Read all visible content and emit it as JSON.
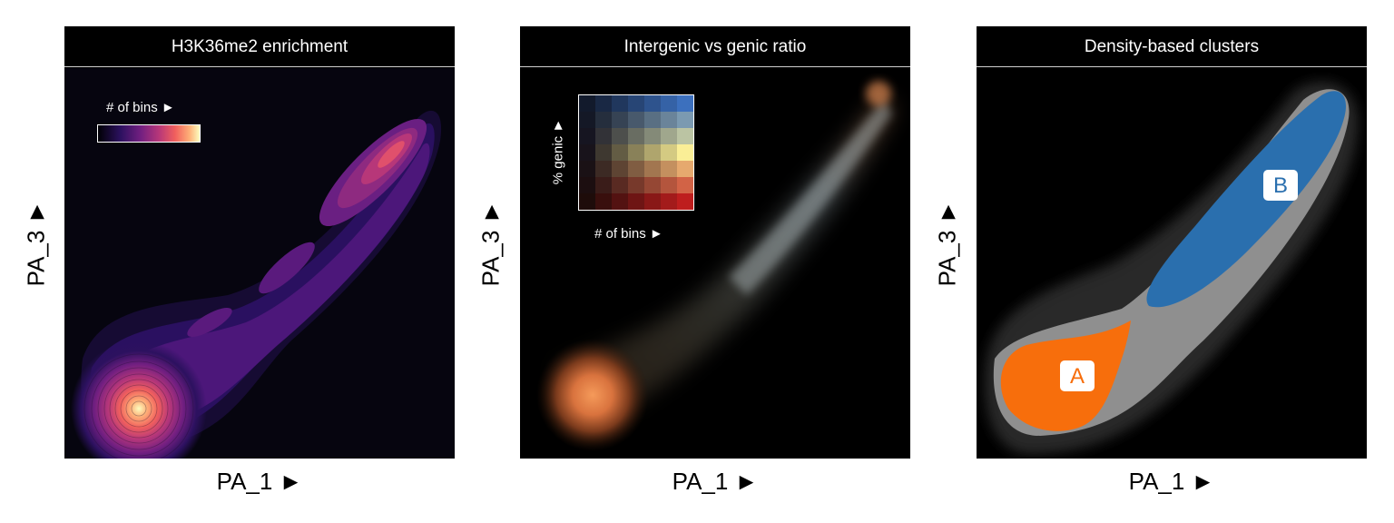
{
  "panels": [
    {
      "title": "H3K36me2 enrichment",
      "xlabel": "PA_1 ►",
      "ylabel": "PA_3 ►"
    },
    {
      "title": "Intergenic vs genic ratio",
      "xlabel": "PA_1 ►",
      "ylabel": "PA_3 ►"
    },
    {
      "title": "Density-based clusters",
      "xlabel": "PA_1 ►",
      "ylabel": "PA_3 ►"
    }
  ],
  "legends": {
    "bins_label": "# of bins ►",
    "genic_label": "% genic ►",
    "bins_label_2": "# of bins ►"
  },
  "clusters": [
    {
      "label": "A",
      "color": "#f76e0c"
    },
    {
      "label": "B",
      "color": "#2a6fae"
    }
  ],
  "colors": {
    "background": "#000000",
    "density_bg": "#06050f",
    "magma_stops": [
      "#000004",
      "#2c115f",
      "#721f81",
      "#b73779",
      "#f1605d",
      "#feb078",
      "#fcfdbf"
    ],
    "scatter_grey": "#8f8f8f"
  },
  "chart_data": [
    {
      "type": "heatmap",
      "title": "H3K36me2 enrichment",
      "xlabel": "PA_1 ►",
      "ylabel": "PA_3 ►",
      "colorbar": "# of bins ►",
      "grid": false,
      "density_peaks": [
        {
          "location": "bottom-left",
          "relative_density": 1.0
        },
        {
          "location": "upper-right",
          "relative_density": 0.55
        }
      ]
    },
    {
      "type": "heatmap",
      "title": "Intergenic vs genic ratio",
      "xlabel": "PA_1 ►",
      "ylabel": "PA_3 ►",
      "legend": {
        "x": "# of bins ►",
        "y": "% genic ►",
        "placement": "top-left"
      },
      "grid": false
    },
    {
      "type": "scatter",
      "title": "Density-based clusters",
      "xlabel": "PA_1 ►",
      "ylabel": "PA_3 ►",
      "series": [
        {
          "name": "A",
          "color": "#f76e0c"
        },
        {
          "name": "B",
          "color": "#2a6fae"
        }
      ],
      "grid": false
    }
  ]
}
